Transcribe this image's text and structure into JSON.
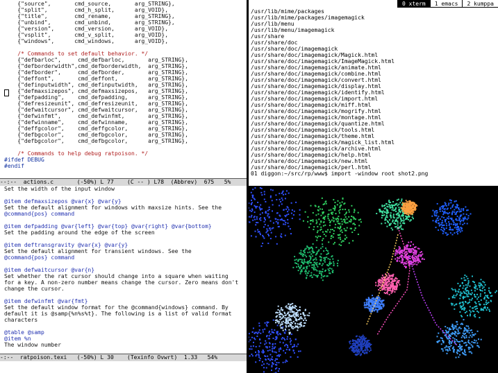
{
  "code_lines": [
    {
      "t": "    {\"source\",       cmd_source,       arg_STRING},",
      "k": "normal"
    },
    {
      "t": "    {\"split\",        cmd_h_split,      arg_VOID},",
      "k": "normal"
    },
    {
      "t": "    {\"title\",        cmd_rename,       arg_STRING},",
      "k": "normal"
    },
    {
      "t": "    {\"unbind\",       cmd_unbind,       arg_STRING},",
      "k": "normal"
    },
    {
      "t": "    {\"version\",      cmd_version,      arg_VOID},",
      "k": "normal"
    },
    {
      "t": "    {\"vsplit\",       cmd_v_split,      arg_VOID},",
      "k": "normal"
    },
    {
      "t": "    {\"windows\",      cmd_windows,      arg_VOID},",
      "k": "normal"
    },
    {
      "t": "",
      "k": "normal"
    },
    {
      "t": "    /* Commands to set default behavior. */",
      "k": "comment"
    },
    {
      "t": "    {\"defbarloc\",     cmd_defbarloc,       arg_STRING},",
      "k": "normal"
    },
    {
      "t": "    {\"defborderwidth\",cmd_defborderwidth,  arg_STRING},",
      "k": "normal"
    },
    {
      "t": "    {\"defborder\",     cmd_defborder,       arg_STRING},",
      "k": "normal"
    },
    {
      "t": "    {\"deffont\",       cmd_deffont,         arg_STRING},",
      "k": "normal"
    },
    {
      "t": "    {\"definputwidth\", cmd_definputwidth,   arg_STRING},",
      "k": "normal"
    },
    {
      "t": "    {\"defmaxsizepos\", cmd_defmaxsizepos,   arg_STRING},",
      "k": "normal"
    },
    {
      "t": "    {\"defpadding\",    cmd_defpadding,      arg_STRING},",
      "k": "normal"
    },
    {
      "t": "    {\"defresizeunit\", cmd_defresizeunit,   arg_STRING},",
      "k": "normal"
    },
    {
      "t": "    {\"defwaitcursor\", cmd_defwaitcursor,   arg_STRING},",
      "k": "normal"
    },
    {
      "t": "    {\"defwinfmt\",     cmd_defwinfmt,       arg_STRING},",
      "k": "normal"
    },
    {
      "t": "    {\"defwinname\",    cmd_defwinname,      arg_STRING},",
      "k": "normal"
    },
    {
      "t": "    {\"deffgcolor\",    cmd_deffgcolor,      arg_STRING},",
      "k": "normal"
    },
    {
      "t": "    {\"defbgcolor\",    cmd_defbgcolor,      arg_STRING},",
      "k": "normal"
    },
    {
      "t": "    {\"defbgcolor\",    cmd_defbgcolor,      arg_STRING},",
      "k": "normal"
    },
    {
      "t": "",
      "k": "normal"
    },
    {
      "t": "    /* Commands to help debug ratpoison. */",
      "k": "comment"
    },
    {
      "t": "#ifdef DEBUG",
      "k": "pre"
    },
    {
      "t": "#endif",
      "k": "pre"
    }
  ],
  "modeline_top": "--:--  actions.c       (-50%) L 77    (C -- ) L78  (Abbrev)  675   5%",
  "info_lines": [
    {
      "t": "Set the width of the input window",
      "k": "body"
    },
    {
      "t": "",
      "k": "body"
    },
    {
      "t": "@item defmaxsizepos @var{x} @var{y}",
      "k": "cmd"
    },
    {
      "t": "Set the default alignment for windows with maxsize hints. See the",
      "k": "body"
    },
    {
      "t": "@command{pos} command",
      "k": "cmd"
    },
    {
      "t": "",
      "k": "body"
    },
    {
      "t": "@item defpadding @var{left} @var{top} @var{right} @var{bottom}",
      "k": "cmd"
    },
    {
      "t": "Set the padding around the edge of the screen",
      "k": "body"
    },
    {
      "t": "",
      "k": "body"
    },
    {
      "t": "@item deftransgravity @var{x} @var{y}",
      "k": "cmd"
    },
    {
      "t": "Set the default alignment for transient windows. See the",
      "k": "body"
    },
    {
      "t": "@command{pos} command",
      "k": "cmd"
    },
    {
      "t": "",
      "k": "body"
    },
    {
      "t": "@item defwaitcursor @var{n}",
      "k": "cmd"
    },
    {
      "t": "Set whether the rat cursor should change into a square when waiting",
      "k": "body"
    },
    {
      "t": "for a key. A non-zero number means change the cursor. Zero means don't",
      "k": "body"
    },
    {
      "t": "change the cursor.",
      "k": "body"
    },
    {
      "t": "",
      "k": "body"
    },
    {
      "t": "@item defwinfmt @var{fmt}",
      "k": "cmd"
    },
    {
      "t": "Set the default window format for the @command{windows} command. By",
      "k": "body"
    },
    {
      "t": "default it is @samp{%n%s%t}. The following is a list of valid format",
      "k": "body"
    },
    {
      "t": "characters",
      "k": "body"
    },
    {
      "t": "",
      "k": "body"
    },
    {
      "t": "@table @samp",
      "k": "cmd"
    },
    {
      "t": "@item %n",
      "k": "cmd"
    },
    {
      "t": "The window number",
      "k": "body"
    }
  ],
  "modeline_bottom": "-:--  ratpoison.texi   (-50%) L 30    (Texinfo Ovwrt)  1.33   54%",
  "tabs": [
    {
      "label": "0 xterm",
      "active": true
    },
    {
      "label": "1 emacs",
      "active": false
    },
    {
      "label": "2 kumppa",
      "active": false
    }
  ],
  "term_lines": [
    "/usr/lib/mime/packages",
    "/usr/lib/mime/packages/imagemagick",
    "/usr/lib/menu",
    "/usr/lib/menu/imagemagick",
    "/usr/share",
    "/usr/share/doc",
    "/usr/share/doc/imagemagick",
    "/usr/share/doc/imagemagick/Magick.html",
    "/usr/share/doc/imagemagick/ImageMagick.html",
    "/usr/share/doc/imagemagick/animate.html",
    "/usr/share/doc/imagemagick/combine.html",
    "/usr/share/doc/imagemagick/convert.html",
    "/usr/share/doc/imagemagick/display.html",
    "/usr/share/doc/imagemagick/identify.html",
    "/usr/share/doc/imagemagick/import.html",
    "/usr/share/doc/imagemagick/miff.html",
    "/usr/share/doc/imagemagick/mogrify.html",
    "/usr/share/doc/imagemagick/montage.html",
    "/usr/share/doc/imagemagick/quantize.html",
    "/usr/share/doc/imagemagick/tools.html",
    "/usr/share/doc/imagemagick/theme.html",
    "/usr/share/doc/imagemagick/magick_list.html",
    "/usr/share/doc/imagemagick/archive.html",
    "/usr/share/doc/imagemagick/help.html",
    "/usr/share/doc/imagemagick/new.html",
    "/usr/share/doc/imagemagick/perl.html",
    "01 diggon:~/src/rp/www$ import -window root shot2.png"
  ],
  "colors": {
    "comment": "#b02020",
    "keyword": "#1030a0",
    "modeline_bg": "#d8d8d8",
    "active_tab_bg": "#000000"
  }
}
